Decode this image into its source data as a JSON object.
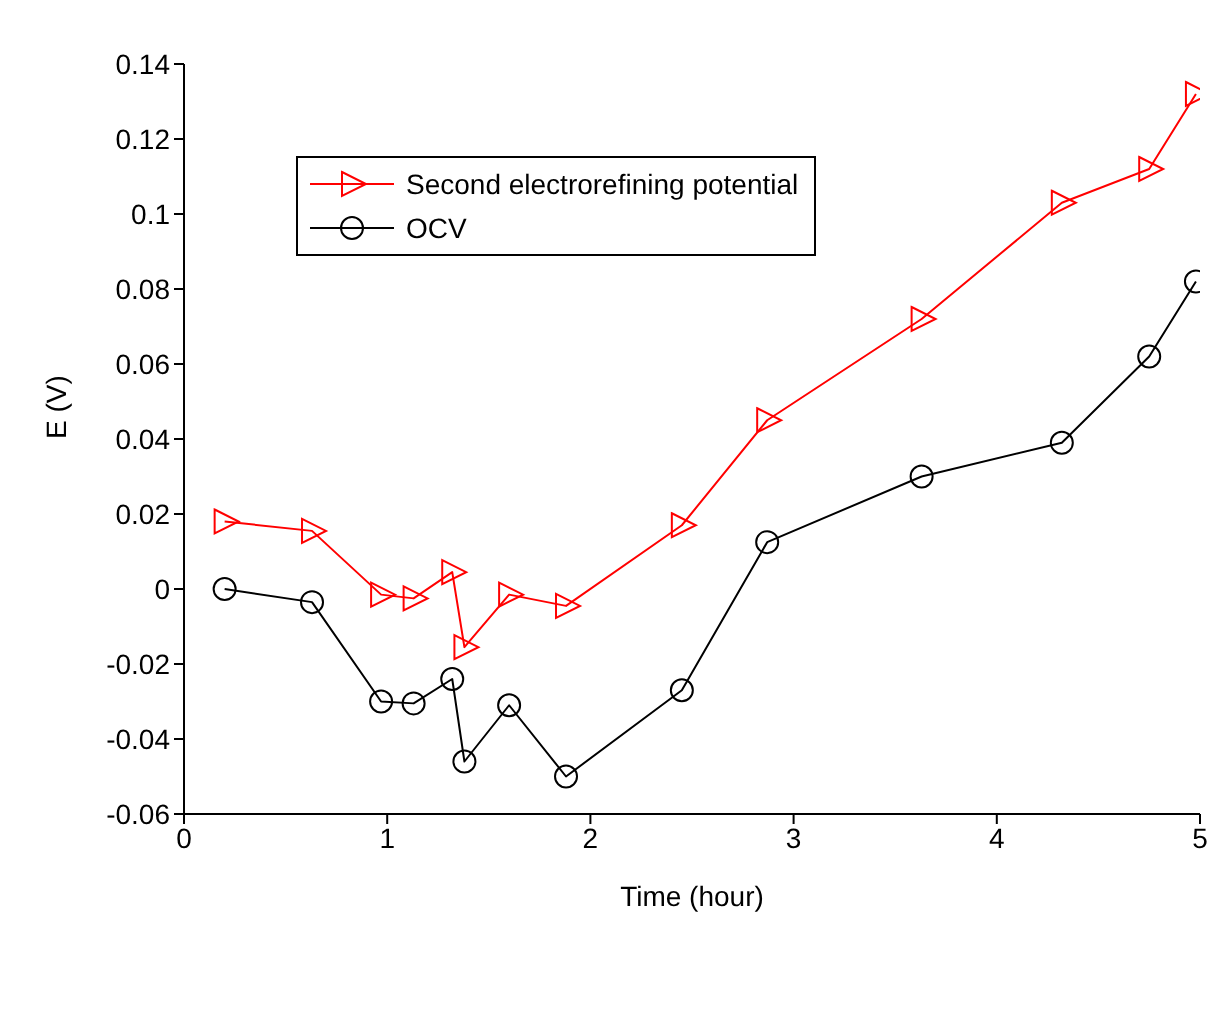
{
  "chart_data": {
    "type": "line",
    "xlabel": "Time (hour)",
    "ylabel": "E (V)",
    "x": [
      0.2,
      0.63,
      0.97,
      1.13,
      1.32,
      1.38,
      1.6,
      1.88,
      2.45,
      2.87,
      3.63,
      4.32,
      4.75,
      4.98
    ],
    "series": [
      {
        "name": "Second electrorefining potential",
        "color": "#ff0000",
        "marker": "triangle",
        "values": [
          0.018,
          0.0155,
          -0.0015,
          -0.0025,
          0.0045,
          -0.0155,
          -0.0015,
          -0.0045,
          0.017,
          0.045,
          0.072,
          0.103,
          0.112,
          0.132
        ]
      },
      {
        "name": "OCV",
        "color": "#000000",
        "marker": "circle",
        "values": [
          0,
          -0.0035,
          -0.03,
          -0.0305,
          -0.024,
          -0.046,
          -0.031,
          -0.05,
          -0.027,
          0.0125,
          0.03,
          0.039,
          0.062,
          0.082
        ]
      }
    ],
    "xlim": [
      0,
      5
    ],
    "xticks": [
      0,
      1,
      2,
      3,
      4,
      5
    ],
    "ylim": [
      -0.06,
      0.14
    ],
    "yticks": [
      -0.06,
      -0.04,
      -0.02,
      0,
      0.02,
      0.04,
      0.06,
      0.08,
      0.1,
      0.12,
      0.14
    ],
    "grid": false,
    "legend": "top left"
  }
}
